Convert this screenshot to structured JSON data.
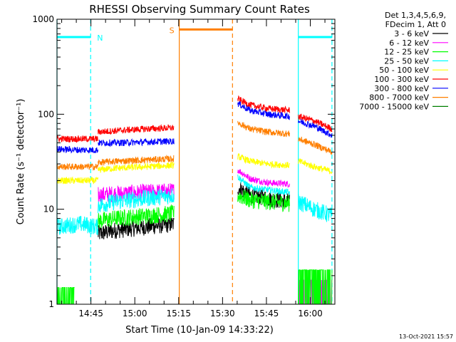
{
  "chart_data": {
    "type": "line",
    "title": "RHESSI Observing Summary Count Rates",
    "xlabel": "Start Time (10-Jan-09 14:33:22)",
    "ylabel": "Count Rate (s⁻¹ detector⁻¹)",
    "x_unit": "minutes after 14:33:22",
    "xlim": [
      0,
      95
    ],
    "ylim": [
      1,
      1000
    ],
    "yscale": "log",
    "x_ticks": [
      {
        "x": 11.6,
        "label": "14:45"
      },
      {
        "x": 26.6,
        "label": "15:00"
      },
      {
        "x": 41.6,
        "label": "15:15"
      },
      {
        "x": 56.6,
        "label": "15:30"
      },
      {
        "x": 71.6,
        "label": "15:45"
      },
      {
        "x": 86.6,
        "label": "16:00"
      }
    ],
    "y_ticks": [
      {
        "y": 1,
        "label": "1"
      },
      {
        "y": 10,
        "label": "10"
      },
      {
        "y": 100,
        "label": "100"
      },
      {
        "y": 1000,
        "label": "1000"
      }
    ],
    "grid": false,
    "legend_position": "right",
    "legend_header": [
      "Det 1,3,4,5,6,9,",
      "FDecim 1, Att 0"
    ],
    "series": [
      {
        "name": "3 - 6 keV",
        "color": "#000000",
        "segments": [
          {
            "x": [
              14.0,
              20.0,
              30.0,
              40.0
            ],
            "y": [
              5.5,
              6.0,
              6.5,
              7.0
            ]
          },
          {
            "x": [
              61.8,
              66.0,
              72.0,
              79.5
            ],
            "y": [
              17.0,
              14.0,
              13.0,
              12.0
            ]
          }
        ]
      },
      {
        "name": "6 - 12 keV",
        "color": "#ff00ff",
        "segments": [
          {
            "x": [
              14.0,
              20.0,
              30.0,
              40.0
            ],
            "y": [
              14.0,
              14.5,
              15.0,
              15.5
            ]
          },
          {
            "x": [
              61.8,
              66.0,
              72.0,
              79.5
            ],
            "y": [
              26.0,
              21.0,
              19.0,
              18.5
            ]
          },
          {
            "x": [
              82.5,
              94.0
            ],
            "y": [
              1.8,
              1.8
            ]
          }
        ]
      },
      {
        "name": "12 - 25 keV",
        "color": "#00ff00",
        "segments": [
          {
            "x": [
              0.0,
              6.0
            ],
            "y": [
              1.5,
              1.5
            ]
          },
          {
            "x": [
              14.0,
              20.0,
              30.0,
              40.0
            ],
            "y": [
              7.5,
              8.0,
              8.5,
              9.0
            ]
          },
          {
            "x": [
              61.8,
              66.0,
              72.0,
              79.5
            ],
            "y": [
              14.0,
              12.5,
              12.0,
              11.5
            ]
          },
          {
            "x": [
              82.5,
              94.0
            ],
            "y": [
              2.3,
              2.3
            ]
          }
        ]
      },
      {
        "name": "25 - 50 keV",
        "color": "#00ffff",
        "segments": [
          {
            "x": [
              0.0,
              8.0,
              14.0
            ],
            "y": [
              6.5,
              7.0,
              6.5
            ]
          },
          {
            "x": [
              14.0,
              20.0,
              30.0,
              40.0
            ],
            "y": [
              11.0,
              12.0,
              13.0,
              14.0
            ]
          },
          {
            "x": [
              61.8,
              66.0,
              72.0,
              79.5
            ],
            "y": [
              22.0,
              17.0,
              16.0,
              15.0
            ]
          },
          {
            "x": [
              82.5,
              88.0,
              94.0
            ],
            "y": [
              12.0,
              10.0,
              8.5
            ]
          }
        ]
      },
      {
        "name": "50 - 100 keV",
        "color": "#ffff00",
        "segments": [
          {
            "x": [
              0.0,
              8.0,
              14.0
            ],
            "y": [
              20.0,
              20.0,
              20.0
            ]
          },
          {
            "x": [
              14.0,
              20.0,
              30.0,
              40.0
            ],
            "y": [
              26.0,
              27.0,
              28.0,
              29.0
            ]
          },
          {
            "x": [
              61.8,
              66.0,
              72.0,
              79.5
            ],
            "y": [
              36.0,
              32.0,
              30.0,
              29.0
            ]
          },
          {
            "x": [
              82.5,
              88.0,
              94.0
            ],
            "y": [
              32.0,
              28.0,
              25.0
            ]
          }
        ]
      },
      {
        "name": "100 - 300 keV",
        "color": "#ff0000",
        "segments": [
          {
            "x": [
              0.0,
              8.0,
              14.0
            ],
            "y": [
              55.0,
              55.0,
              55.0
            ]
          },
          {
            "x": [
              14.0,
              20.0,
              30.0,
              40.0
            ],
            "y": [
              65.0,
              67.0,
              70.0,
              72.0
            ]
          },
          {
            "x": [
              61.8,
              66.0,
              72.0,
              79.5
            ],
            "y": [
              145.0,
              125.0,
              115.0,
              110.0
            ]
          },
          {
            "x": [
              82.5,
              88.0,
              94.0
            ],
            "y": [
              95.0,
              85.0,
              70.0
            ]
          }
        ]
      },
      {
        "name": "300 - 800 keV",
        "color": "#0000ff",
        "segments": [
          {
            "x": [
              0.0,
              8.0,
              14.0
            ],
            "y": [
              43.0,
              42.0,
              42.0
            ]
          },
          {
            "x": [
              14.0,
              20.0,
              30.0,
              40.0
            ],
            "y": [
              50.0,
              50.0,
              51.0,
              52.0
            ]
          },
          {
            "x": [
              61.8,
              66.0,
              72.0,
              79.5
            ],
            "y": [
              130.0,
              110.0,
              100.0,
              95.0
            ]
          },
          {
            "x": [
              82.5,
              88.0,
              94.0
            ],
            "y": [
              85.0,
              75.0,
              60.0
            ]
          }
        ]
      },
      {
        "name": "800 - 7000 keV",
        "color": "#ff7f00",
        "segments": [
          {
            "x": [
              0.0,
              8.0,
              14.0
            ],
            "y": [
              28.0,
              28.0,
              28.0
            ]
          },
          {
            "x": [
              14.0,
              20.0,
              30.0,
              40.0
            ],
            "y": [
              31.0,
              32.0,
              33.0,
              34.0
            ]
          },
          {
            "x": [
              61.8,
              66.0,
              72.0,
              79.5
            ],
            "y": [
              82.0,
              70.0,
              65.0,
              62.0
            ]
          },
          {
            "x": [
              82.5,
              88.0,
              94.0
            ],
            "y": [
              55.0,
              48.0,
              40.0
            ]
          }
        ]
      },
      {
        "name": "7000 - 15000 keV",
        "color": "#007f00",
        "segments": []
      }
    ],
    "states": [
      {
        "label": "N",
        "color": "#00ffff",
        "level": 650,
        "x": [
          0.0,
          11.5
        ],
        "edges": [
          0.0,
          11.5
        ],
        "edge_styles": [
          "solid",
          "dashed"
        ]
      },
      {
        "label": "S",
        "color": "#ff7f00",
        "level": 780,
        "x": [
          41.8,
          60.0
        ],
        "edges": [
          41.8,
          60.0
        ],
        "edge_styles": [
          "solid",
          "dashed"
        ]
      },
      {
        "label": "",
        "color": "#00ffff",
        "level": 650,
        "x": [
          82.5,
          94.0
        ],
        "edges": [
          82.5,
          94.0
        ],
        "edge_styles": [
          "solid",
          "dashed"
        ]
      }
    ],
    "timestamp": "13-Oct-2021 15:57"
  }
}
